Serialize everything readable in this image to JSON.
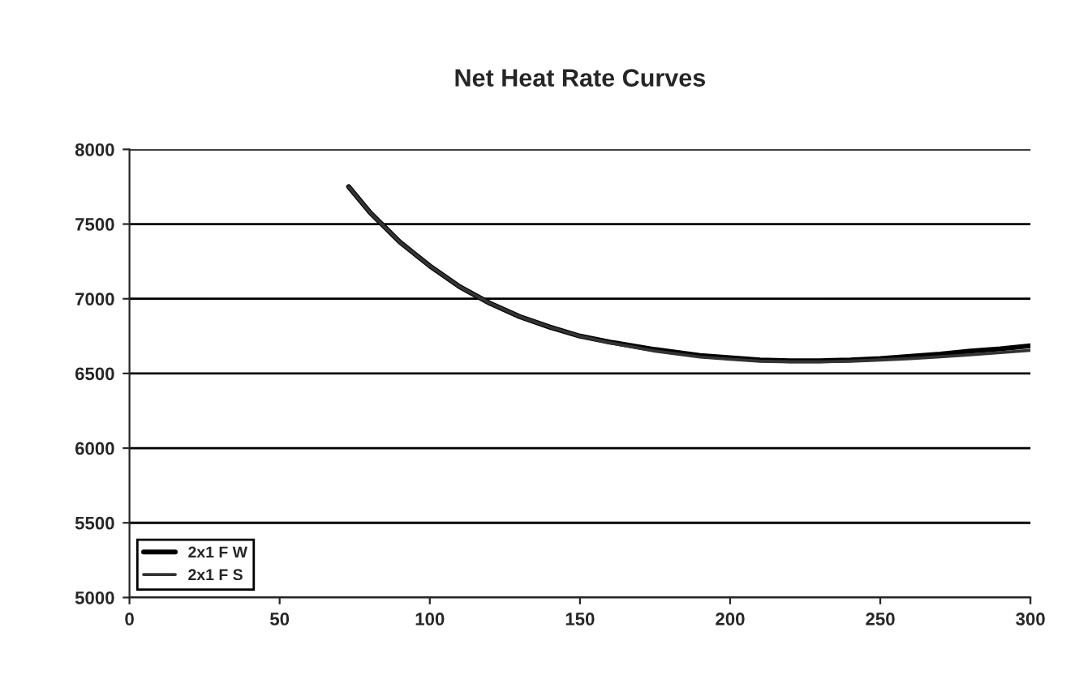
{
  "chart_data": {
    "type": "line",
    "title": "Net Heat Rate Curves",
    "xlim": [
      0,
      300
    ],
    "xticks": [
      0,
      50,
      100,
      150,
      200,
      250,
      300
    ],
    "ylim": [
      5000,
      8000
    ],
    "yticks": [
      5000,
      5500,
      6000,
      6500,
      7000,
      7500,
      8000
    ],
    "grid": "y",
    "legend": "bottom left",
    "line_style": "solid",
    "series": [
      {
        "name": "2x1 F W",
        "color": "#000000",
        "x": [
          73,
          80,
          90,
          100,
          110,
          120,
          130,
          140,
          150,
          160,
          175,
          190,
          200,
          210,
          220,
          230,
          240,
          250,
          260,
          270,
          280,
          290,
          300
        ],
        "values": [
          7750,
          7580,
          7380,
          7220,
          7080,
          6970,
          6880,
          6810,
          6750,
          6710,
          6660,
          6620,
          6605,
          6590,
          6585,
          6585,
          6590,
          6600,
          6615,
          6630,
          6650,
          6665,
          6685
        ]
      },
      {
        "name": "2x1 F S",
        "color": "#333333",
        "x": [
          73,
          80,
          90,
          100,
          110,
          120,
          130,
          140,
          150,
          160,
          175,
          190,
          200,
          210,
          220,
          230,
          240,
          250,
          260,
          270,
          280,
          290,
          300
        ],
        "values": [
          7750,
          7580,
          7380,
          7220,
          7080,
          6970,
          6880,
          6810,
          6750,
          6705,
          6650,
          6610,
          6595,
          6582,
          6578,
          6578,
          6582,
          6590,
          6600,
          6612,
          6625,
          6640,
          6655
        ]
      }
    ]
  }
}
